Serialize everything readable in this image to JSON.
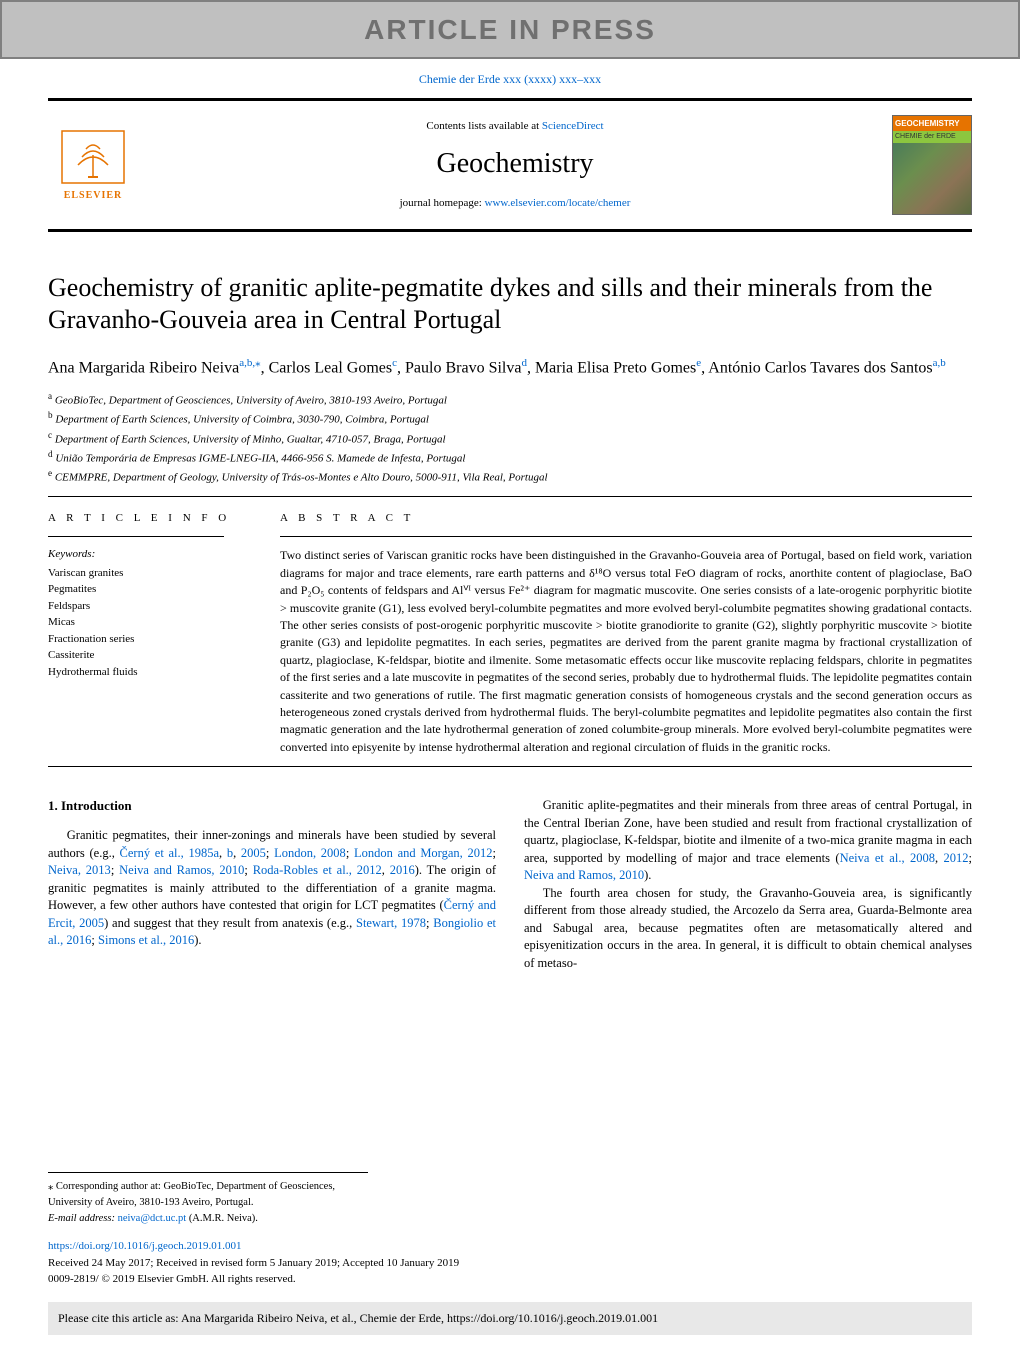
{
  "banner": {
    "text": "ARTICLE IN PRESS"
  },
  "journal_ref": "Chemie der Erde xxx (xxxx) xxx–xxx",
  "header": {
    "contents_prefix": "Contents lists available at ",
    "contents_link": "ScienceDirect",
    "journal_title": "Geochemistry",
    "homepage_prefix": "journal homepage: ",
    "homepage_link": "www.elsevier.com/locate/chemer",
    "publisher_name": "ELSEVIER",
    "cover_label_1": "GEOCHEMISTRY",
    "cover_label_2": "CHEMIE der ERDE"
  },
  "article_title": "Geochemistry of granitic aplite-pegmatite dykes and sills and their minerals from the Gravanho-Gouveia area in Central Portugal",
  "authors": [
    {
      "name": "Ana Margarida Ribeiro Neiva",
      "sup": "a,b,⁎"
    },
    {
      "name": "Carlos Leal Gomes",
      "sup": "c"
    },
    {
      "name": "Paulo Bravo Silva",
      "sup": "d"
    },
    {
      "name": "Maria Elisa Preto Gomes",
      "sup": "e"
    },
    {
      "name": "António Carlos Tavares dos Santos",
      "sup": "a,b"
    }
  ],
  "affiliations": [
    {
      "sup": "a",
      "text": "GeoBioTec, Department of Geosciences, University of Aveiro, 3810-193 Aveiro, Portugal"
    },
    {
      "sup": "b",
      "text": "Department of Earth Sciences, University of Coimbra, 3030-790, Coimbra, Portugal"
    },
    {
      "sup": "c",
      "text": "Department of Earth Sciences, University of Minho, Gualtar, 4710-057, Braga, Portugal"
    },
    {
      "sup": "d",
      "text": "União Temporária de Empresas IGME-LNEG-IIA, 4466-956 S. Mamede de Infesta, Portugal"
    },
    {
      "sup": "e",
      "text": "CEMMPRE, Department of Geology, University of Trás-os-Montes e Alto Douro, 5000-911, Vila Real, Portugal"
    }
  ],
  "article_info_label": "A R T I C L E  I N F O",
  "abstract_label": "A B S T R A C T",
  "keywords_label": "Keywords:",
  "keywords": [
    "Variscan granites",
    "Pegmatites",
    "Feldspars",
    "Micas",
    "Fractionation series",
    "Cassiterite",
    "Hydrothermal fluids"
  ],
  "abstract": "Two distinct series of Variscan granitic rocks have been distinguished in the Gravanho-Gouveia area of Portugal, based on field work, variation diagrams for major and trace elements, rare earth patterns and δ¹⁸O versus total FeO diagram of rocks, anorthite content of plagioclase, BaO and P₂O₅ contents of feldspars and Alⱽᴵ versus Fe²⁺ diagram for magmatic muscovite. One series consists of a late-orogenic porphyritic biotite > muscovite granite (G1), less evolved beryl-columbite pegmatites and more evolved beryl-columbite pegmatites showing gradational contacts. The other series consists of post-orogenic porphyritic muscovite > biotite granodiorite to granite (G2), slightly porphyritic muscovite > biotite granite (G3) and lepidolite pegmatites. In each series, pegmatites are derived from the parent granite magma by fractional crystallization of quartz, plagioclase, K-feldspar, biotite and ilmenite. Some metasomatic effects occur like muscovite replacing feldspars, chlorite in pegmatites of the first series and a late muscovite in pegmatites of the second series, probably due to hydrothermal fluids. The lepidolite pegmatites contain cassiterite and two generations of rutile. The first magmatic generation consists of homogeneous crystals and the second generation occurs as heterogeneous zoned crystals derived from hydrothermal fluids. The beryl-columbite pegmatites and lepidolite pegmatites also contain the first magmatic generation and the late hydrothermal generation of zoned columbite-group minerals. More evolved beryl-columbite pegmatites were converted into episyenite by intense hydrothermal alteration and regional circulation of fluids in the granitic rocks.",
  "intro": {
    "heading": "1. Introduction",
    "p1_pre": "Granitic pegmatites, their inner-zonings and minerals have been studied by several authors (e.g., ",
    "p1_links": [
      "Černý et al., 1985a",
      ", ",
      "b",
      ", ",
      "2005",
      "; ",
      "London, 2008",
      "; ",
      "London and Morgan, 2012",
      "; ",
      "Neiva, 2013",
      "; ",
      "Neiva and Ramos, 2010",
      "; ",
      "Roda-Robles et al., 2012",
      ", ",
      "2016"
    ],
    "p1_mid": "). The origin of granitic pegmatites is mainly attributed to the differentiation of a granite magma. However, a few other authors have contested that origin for LCT pegmatites (",
    "p1_link2": "Černý and Ercit, 2005",
    "p1_mid2": ") and suggest that they result from anatexis (e.g., ",
    "p1_links3": [
      "Stewart, 1978",
      "; ",
      "Bongiolio et al., 2016",
      "; ",
      "Simons et al., 2016"
    ],
    "p1_post": ").",
    "p2_pre": "Granitic aplite-pegmatites and their minerals from three areas of central Portugal, in the Central Iberian Zone, have been studied and result from fractional crystallization of quartz, plagioclase, K-feldspar, biotite and ilmenite of a two-mica granite magma in each area, supported by modelling of major and trace elements (",
    "p2_links": [
      "Neiva et al., 2008",
      ", ",
      "2012",
      "; ",
      "Neiva and Ramos, 2010"
    ],
    "p2_post": ").",
    "p3": "The fourth area chosen for study, the Gravanho-Gouveia area, is significantly different from those already studied, the Arcozelo da Serra area, Guarda-Belmonte area and Sabugal area, because pegmatites often are metasomatically altered and episyenitization occurs in the area. In general, it is difficult to obtain chemical analyses of metaso-"
  },
  "footnote": {
    "corr": "⁎ Corresponding author at: GeoBioTec, Department of Geosciences, University of Aveiro, 3810-193 Aveiro, Portugal.",
    "email_label": "E-mail address: ",
    "email": "neiva@dct.uc.pt",
    "email_suffix": " (A.M.R. Neiva)."
  },
  "doi": {
    "url": "https://doi.org/10.1016/j.geoch.2019.01.001",
    "received": "Received 24 May 2017; Received in revised form 5 January 2019; Accepted 10 January 2019",
    "copyright": "0009-2819/ © 2019 Elsevier GmbH. All rights reserved."
  },
  "cite_box": "Please cite this article as: Ana Margarida Ribeiro Neiva, et al., Chemie der Erde, https://doi.org/10.1016/j.geoch.2019.01.001"
}
